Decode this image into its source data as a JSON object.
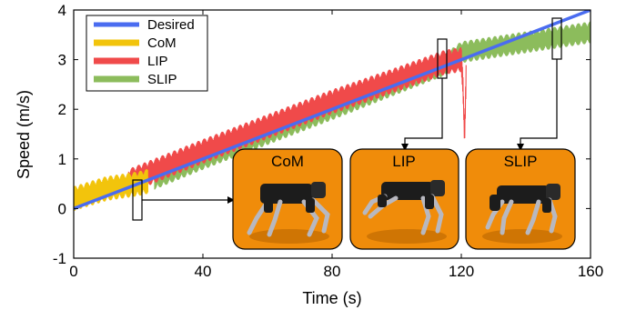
{
  "chart_data": {
    "type": "line",
    "title": "",
    "xlabel": "Time (s)",
    "ylabel": "Speed (m/s)",
    "xlim": [
      0,
      160
    ],
    "ylim": [
      -1,
      4
    ],
    "x_ticks": [
      "0",
      "40",
      "80",
      "120",
      "160"
    ],
    "y_ticks": [
      "-1",
      "0",
      "1",
      "2",
      "3",
      "4"
    ],
    "legend_position": "top-left",
    "series": [
      {
        "name": "Desired",
        "color": "#4a6cf0",
        "x": [
          0,
          160
        ],
        "y": [
          0.0,
          4.0
        ]
      },
      {
        "name": "CoM",
        "color": "#f2c40c",
        "x": [
          0,
          5,
          10,
          15,
          20,
          23
        ],
        "y": [
          0.2,
          0.3,
          0.4,
          0.45,
          0.5,
          0.55
        ],
        "band": 0.25
      },
      {
        "name": "LIP",
        "color": "#f04a4a",
        "x": [
          17,
          40,
          80,
          100,
          115,
          120,
          120.5,
          121,
          121.5
        ],
        "y": [
          0.55,
          1.15,
          2.15,
          2.6,
          2.95,
          3.0,
          2.5,
          1.4,
          2.7
        ],
        "band": 0.25
      },
      {
        "name": "SLIP",
        "color": "#8cbc5c",
        "x": [
          25,
          40,
          80,
          115,
          120,
          140,
          160
        ],
        "y": [
          0.6,
          1.0,
          2.0,
          2.9,
          3.15,
          3.35,
          3.55
        ],
        "band": 0.22
      }
    ],
    "callouts": [
      {
        "label": "CoM",
        "box_x": [
          18.5,
          21.5
        ],
        "box_y": [
          -0.2,
          0.6
        ]
      },
      {
        "label": "LIP",
        "box_x": [
          112.5,
          115.5
        ],
        "box_y": [
          2.6,
          3.4
        ]
      },
      {
        "label": "SLIP",
        "box_x": [
          148.5,
          151.5
        ],
        "box_y": [
          3.0,
          3.8
        ]
      }
    ]
  },
  "inset_images": [
    {
      "label": "CoM",
      "kind": "quadruped-robot-render"
    },
    {
      "label": "LIP",
      "kind": "quadruped-robot-render"
    },
    {
      "label": "SLIP",
      "kind": "quadruped-robot-render"
    }
  ],
  "colors": {
    "inset_background": "#f08c0a",
    "robot": "#1c1c1c",
    "leg_metal": "#b8b8c0"
  }
}
